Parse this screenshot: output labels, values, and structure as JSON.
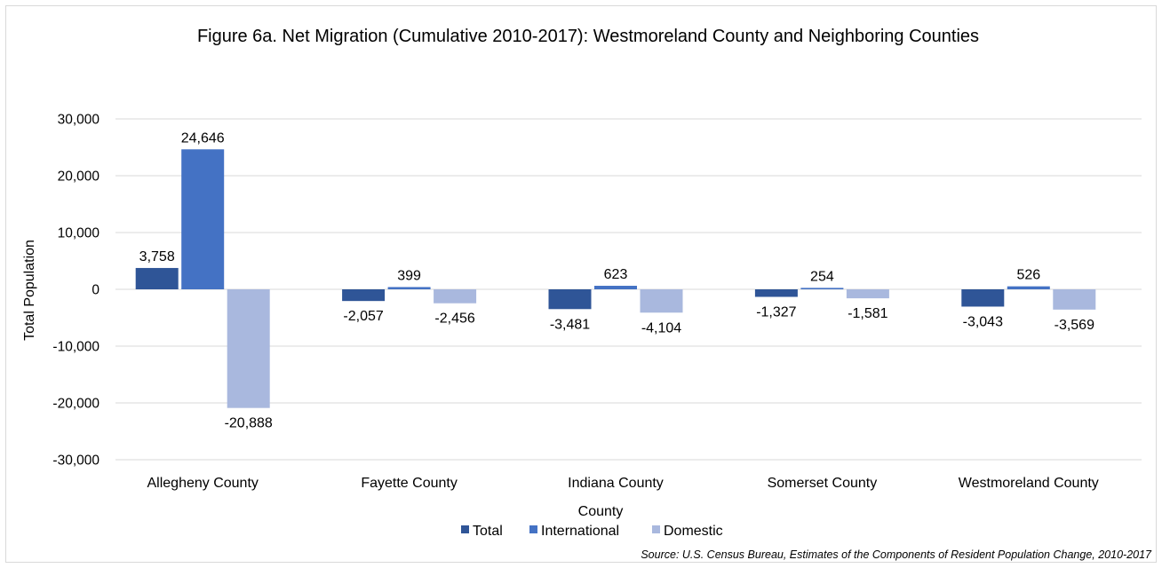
{
  "chart_data": {
    "type": "bar",
    "title": "Figure 6a. Net Migration (Cumulative 2010-2017): Westmoreland County and Neighboring Counties",
    "xlabel": "County",
    "ylabel": "Total Population",
    "categories": [
      "Allegheny County",
      "Fayette County",
      "Indiana County",
      "Somerset County",
      "Westmoreland County"
    ],
    "series": [
      {
        "name": "Total",
        "color": "#2f5597",
        "values": [
          3758,
          -2057,
          -3481,
          -1327,
          -3043
        ],
        "labels": [
          "3,758",
          "-2,057",
          "-3,481",
          "-1,327",
          "-3,043"
        ]
      },
      {
        "name": "International",
        "color": "#4472c4",
        "values": [
          24646,
          399,
          623,
          254,
          526
        ],
        "labels": [
          "24,646",
          "399",
          "623",
          "254",
          "526"
        ]
      },
      {
        "name": "Domestic",
        "color": "#a9b8de",
        "values": [
          -20888,
          -2456,
          -4104,
          -1581,
          -3569
        ],
        "labels": [
          "-20,888",
          "-2,456",
          "-4,104",
          "-1,581",
          "-3,569"
        ]
      }
    ],
    "ylim": [
      -30000,
      30000
    ],
    "yticks": [
      30000,
      20000,
      10000,
      0,
      -10000,
      -20000,
      -30000
    ],
    "ytick_labels": [
      "30,000",
      "20,000",
      "10,000",
      "0",
      "-10,000",
      "-20,000",
      "-30,000"
    ],
    "grid": true,
    "legend_position": "bottom",
    "source": "Source: U.S. Census Bureau, Estimates of the Components of Resident Population Change, 2010-2017"
  }
}
